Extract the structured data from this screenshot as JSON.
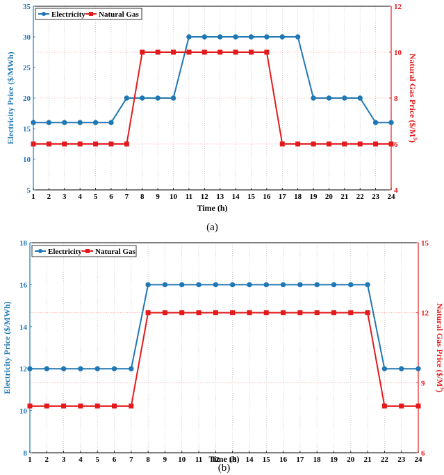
{
  "colors": {
    "electricity": "#1f77b4",
    "gas": "#e31a1c",
    "axis": "#000000",
    "vgrid": "#b0b0b0",
    "hgrid": "#ff8080"
  },
  "chart_data": [
    {
      "type": "line",
      "caption": "(a)",
      "xlabel": "Time (h)",
      "ylabel_left": "Electricity Price ($/MWh)",
      "ylabel_right_main": "Natural Gas Price ($/M",
      "ylabel_right_sup": "3",
      "ylabel_right_end": ")",
      "x": [
        1,
        2,
        3,
        4,
        5,
        6,
        7,
        8,
        9,
        10,
        11,
        12,
        13,
        14,
        15,
        16,
        17,
        18,
        19,
        20,
        21,
        22,
        23,
        24
      ],
      "ylim_left": [
        5,
        35
      ],
      "yticks_left": [
        5,
        10,
        15,
        20,
        25,
        30,
        35
      ],
      "ylim_right": [
        4,
        12
      ],
      "yticks_right": [
        4,
        6,
        8,
        10,
        12
      ],
      "legend_position": "top-left",
      "series": [
        {
          "name": "Electricity",
          "axis": "left",
          "values": [
            16,
            16,
            16,
            16,
            16,
            16,
            20,
            20,
            20,
            20,
            30,
            30,
            30,
            30,
            30,
            30,
            30,
            30,
            20,
            20,
            20,
            20,
            16,
            16
          ]
        },
        {
          "name": "Natural Gas",
          "axis": "right",
          "values": [
            6,
            6,
            6,
            6,
            6,
            6,
            6,
            10,
            10,
            10,
            10,
            10,
            10,
            10,
            10,
            10,
            6,
            6,
            6,
            6,
            6,
            6,
            6,
            6
          ]
        }
      ]
    },
    {
      "type": "line",
      "caption": "(b)",
      "xlabel": "Time (h)",
      "ylabel_left": "Electricity Price ($/MWh)",
      "ylabel_right_main": "Natural Gas Price ($/M",
      "ylabel_right_sup": "3",
      "ylabel_right_end": ")",
      "x": [
        1,
        2,
        3,
        4,
        5,
        6,
        7,
        8,
        9,
        10,
        11,
        12,
        13,
        14,
        15,
        16,
        17,
        18,
        19,
        20,
        21,
        22,
        23,
        24
      ],
      "ylim_left": [
        8,
        18
      ],
      "yticks_left": [
        8,
        10,
        12,
        14,
        16,
        18
      ],
      "ylim_right": [
        6,
        15
      ],
      "yticks_right": [
        6,
        9,
        12,
        15
      ],
      "legend_position": "top-left",
      "series": [
        {
          "name": "Electricity",
          "axis": "left",
          "values": [
            12,
            12,
            12,
            12,
            12,
            12,
            12,
            16,
            16,
            16,
            16,
            16,
            16,
            16,
            16,
            16,
            16,
            16,
            16,
            16,
            16,
            12,
            12,
            12
          ]
        },
        {
          "name": "Natural Gas",
          "axis": "right",
          "values": [
            8,
            8,
            8,
            8,
            8,
            8,
            8,
            12,
            12,
            12,
            12,
            12,
            12,
            12,
            12,
            12,
            12,
            12,
            12,
            12,
            12,
            8,
            8,
            8
          ]
        }
      ]
    }
  ]
}
